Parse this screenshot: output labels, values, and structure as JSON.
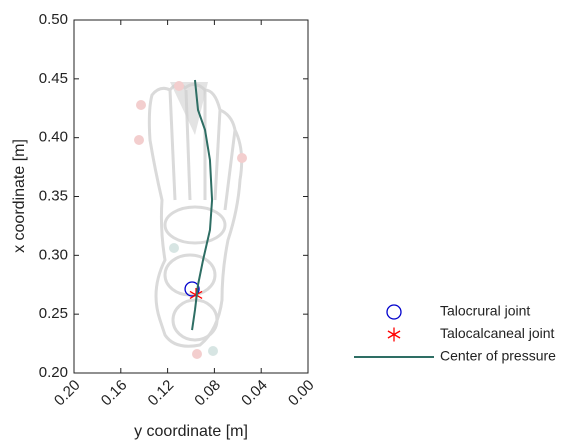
{
  "chart_data": {
    "type": "line",
    "xlabel": "y coordinate [m]",
    "ylabel": "x coordinate [m]",
    "xlim": [
      0.2,
      0.0
    ],
    "ylim": [
      0.2,
      0.5
    ],
    "xticks": [
      {
        "value": 0.2,
        "label": "0.20"
      },
      0.16,
      0.12,
      0.08,
      0.04,
      {
        "value": 0.0,
        "label": "0.00"
      }
    ],
    "yticks": [
      {
        "value": 0.2,
        "label": "0.20"
      },
      0.25,
      {
        "value": 0.3,
        "label": "0.30"
      },
      0.35,
      {
        "value": 0.4,
        "label": "0.40"
      },
      0.45,
      {
        "value": 0.5,
        "label": "0.50"
      }
    ],
    "series": [
      {
        "name": "Talocrural joint",
        "type": "scatter",
        "marker": "circle",
        "color": "#0000cc",
        "x": [
          0.0991
        ],
        "y": [
          0.2714
        ]
      },
      {
        "name": "Talocalcaneal joint",
        "type": "scatter",
        "marker": "asterisk",
        "color": "#ff0000",
        "x": [
          0.0957
        ],
        "y": [
          0.2663
        ]
      },
      {
        "name": "Center of pressure",
        "type": "line",
        "color": "#2e6e64",
        "x": [
          0.0991,
          0.0966,
          0.094,
          0.0897,
          0.0838,
          0.082,
          0.0838,
          0.088,
          0.094,
          0.0966
        ],
        "y": [
          0.2365,
          0.2535,
          0.275,
          0.296,
          0.3215,
          0.347,
          0.381,
          0.4065,
          0.4235,
          0.449
        ]
      }
    ]
  }
}
